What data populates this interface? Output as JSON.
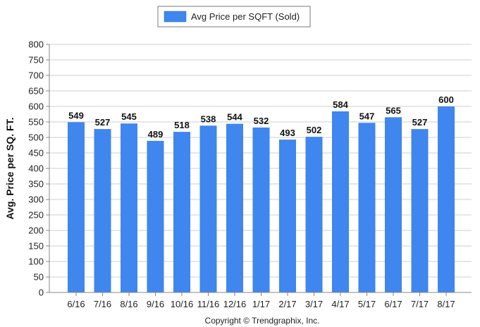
{
  "chart_data": {
    "type": "bar",
    "categories": [
      "6/16",
      "7/16",
      "8/16",
      "9/16",
      "10/16",
      "11/16",
      "12/16",
      "1/17",
      "2/17",
      "3/17",
      "4/17",
      "5/17",
      "6/17",
      "7/17",
      "8/17"
    ],
    "series": [
      {
        "name": "Avg Price per SQFT (Sold)",
        "values": [
          549,
          527,
          545,
          489,
          518,
          538,
          544,
          532,
          493,
          502,
          584,
          547,
          565,
          527,
          600
        ],
        "color": "#3f86ee"
      }
    ],
    "ylabel": "Avg. Price per SQ. FT.",
    "xlabel": "",
    "ylim": [
      0,
      800
    ],
    "yticks": [
      0,
      50,
      100,
      150,
      200,
      250,
      300,
      350,
      400,
      450,
      500,
      550,
      600,
      650,
      700,
      750,
      800
    ],
    "grid": true,
    "legend_position": "top-center",
    "data_labels": true
  },
  "legend": {
    "label": "Avg Price per SQFT (Sold)"
  },
  "footer": {
    "copyright": "Copyright © Trendgraphix, Inc."
  },
  "colors": {
    "bar": "#3f86ee",
    "grid": "#cfcfcf",
    "axis": "#888888"
  }
}
